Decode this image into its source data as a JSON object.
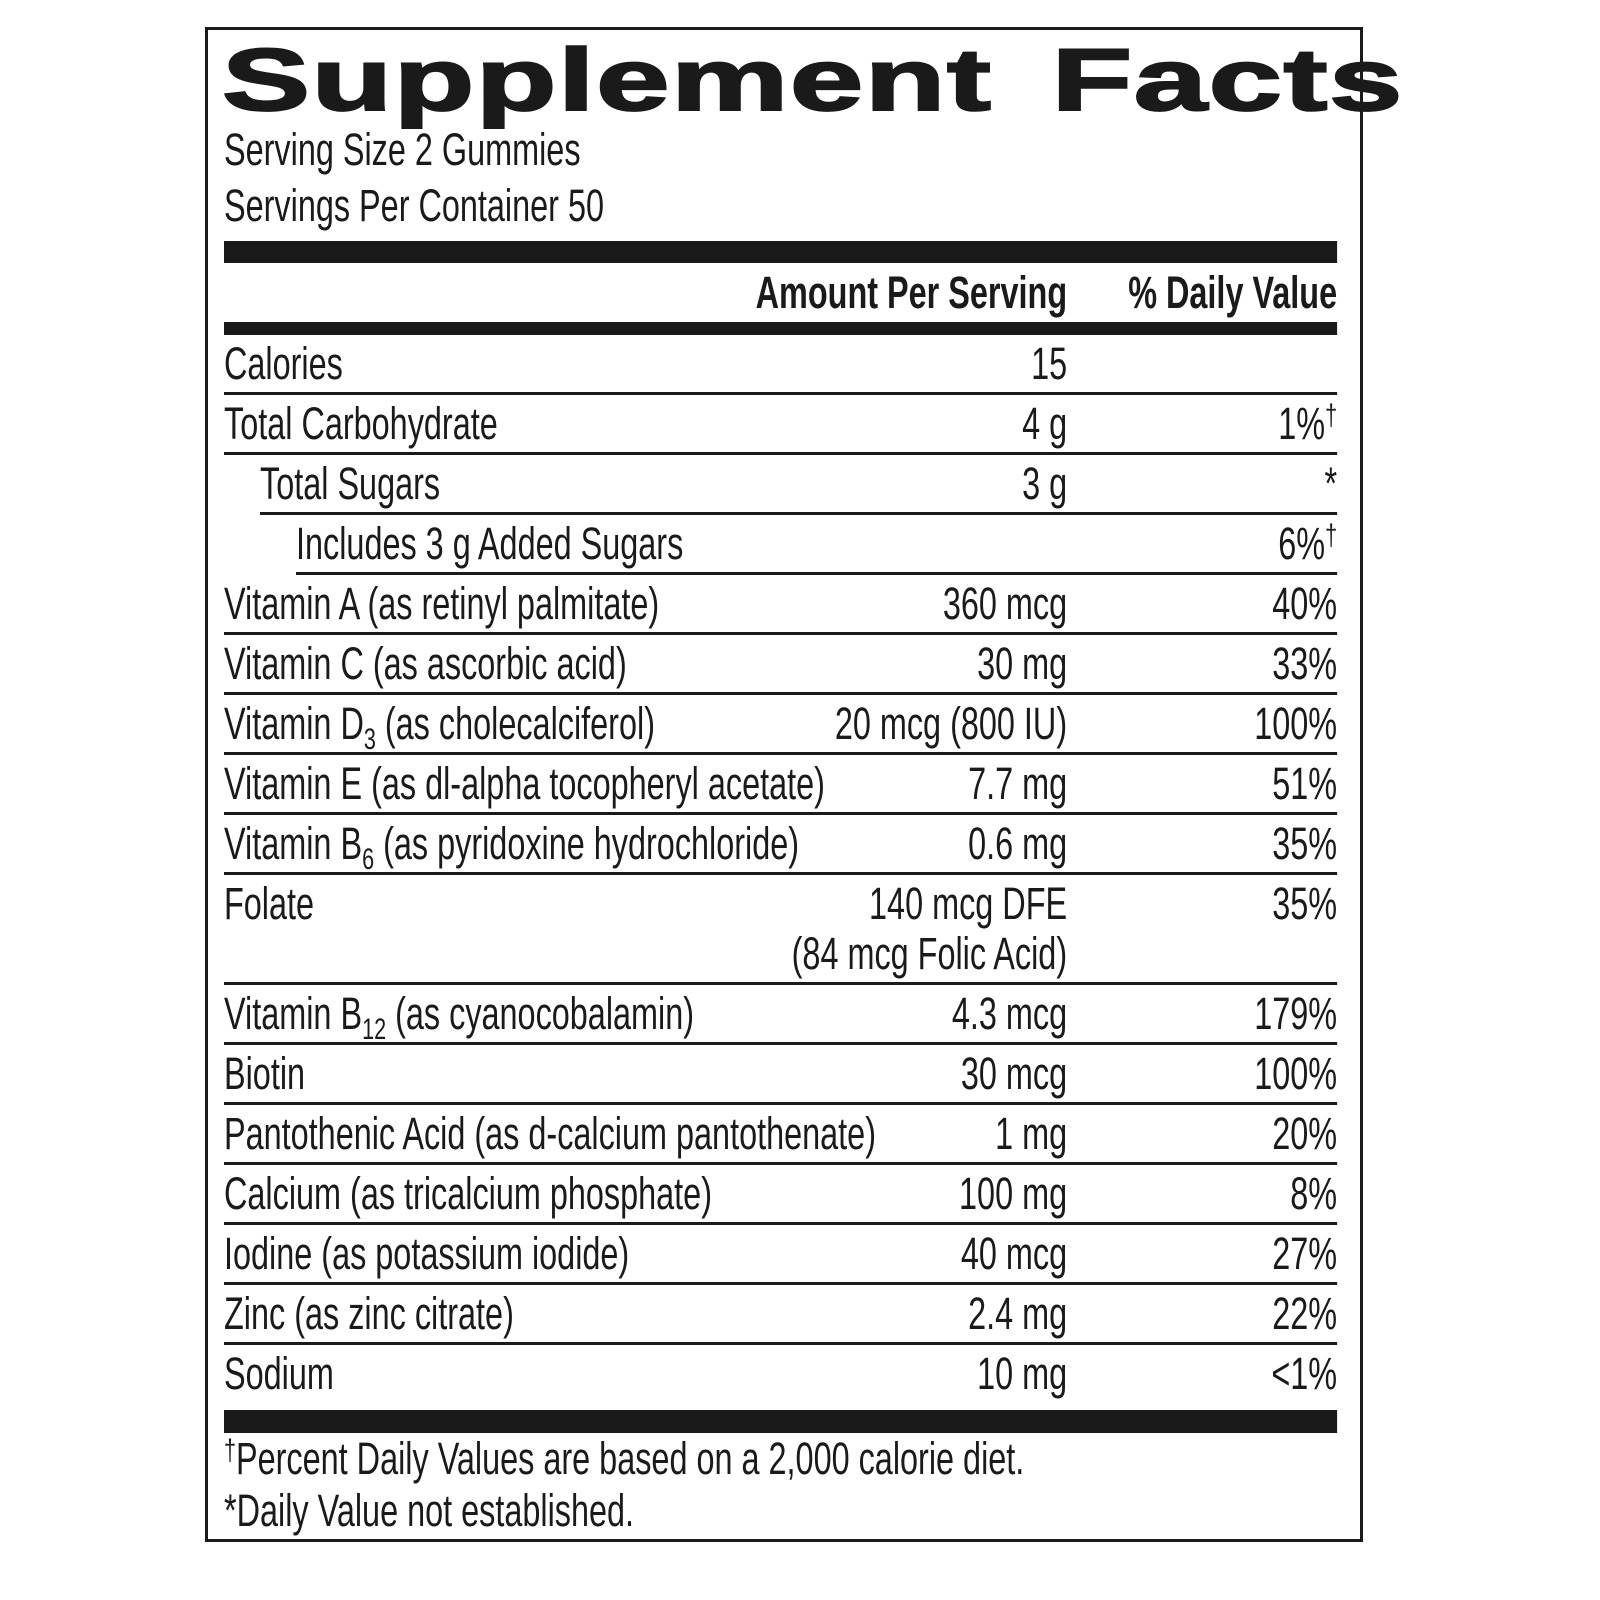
{
  "title": "Supplement Facts",
  "serving_size": "Serving Size 2 Gummies",
  "servings_per_container": "Servings Per Container 50",
  "header": {
    "amount": "Amount Per Serving",
    "dv": "% Daily Value"
  },
  "rows": [
    {
      "name": "Calories",
      "amount": "15",
      "dv": ""
    },
    {
      "name": "Total Carbohydrate",
      "amount": "4 g",
      "dv": "1%",
      "mark": "†"
    },
    {
      "name": "Total Sugars",
      "amount": "3 g",
      "dv": "*",
      "indent": 1
    },
    {
      "name": "Includes 3 g Added Sugars",
      "amount": "",
      "dv": "6%",
      "mark": "†",
      "indent": 2
    },
    {
      "name": "Vitamin A (as retinyl palmitate)",
      "amount": "360 mcg",
      "dv": "40%"
    },
    {
      "name": "Vitamin C (as ascorbic acid)",
      "amount": "30 mg",
      "dv": "33%"
    },
    {
      "name": "Vitamin D",
      "sub": "3",
      "suffix": " (as cholecalciferol)",
      "amount": "20 mcg (800 IU)",
      "dv": "100%"
    },
    {
      "name": "Vitamin E (as dl-alpha tocopheryl acetate)",
      "amount": "7.7 mg",
      "dv": "51%"
    },
    {
      "name": "Vitamin B",
      "sub": "6",
      "suffix": " (as pyridoxine hydrochloride)",
      "amount": "0.6 mg",
      "dv": "35%"
    },
    {
      "name": "Folate",
      "amount": "140 mcg DFE",
      "amount2": "(84 mcg Folic Acid)",
      "dv": "35%"
    },
    {
      "name": "Vitamin B",
      "sub": "12",
      "suffix": " (as cyanocobalamin)",
      "amount": "4.3 mcg",
      "dv": "179%"
    },
    {
      "name": "Biotin",
      "amount": "30 mcg",
      "dv": "100%"
    },
    {
      "name": "Pantothenic Acid (as d-calcium pantothenate)",
      "amount": "1 mg",
      "dv": "20%"
    },
    {
      "name": "Calcium (as tricalcium phosphate)",
      "amount": "100 mg",
      "dv": "8%"
    },
    {
      "name": "Iodine (as potassium iodide)",
      "amount": "40 mcg",
      "dv": "27%"
    },
    {
      "name": "Zinc (as zinc citrate)",
      "amount": "2.4 mg",
      "dv": "22%"
    },
    {
      "name": "Sodium",
      "amount": "10 mg",
      "dv": "<1%"
    }
  ],
  "footnotes": [
    {
      "mark": "†",
      "text": "Percent Daily Values are based on a 2,000 calorie diet."
    },
    {
      "mark": "",
      "text": "*Daily Value not established."
    }
  ]
}
